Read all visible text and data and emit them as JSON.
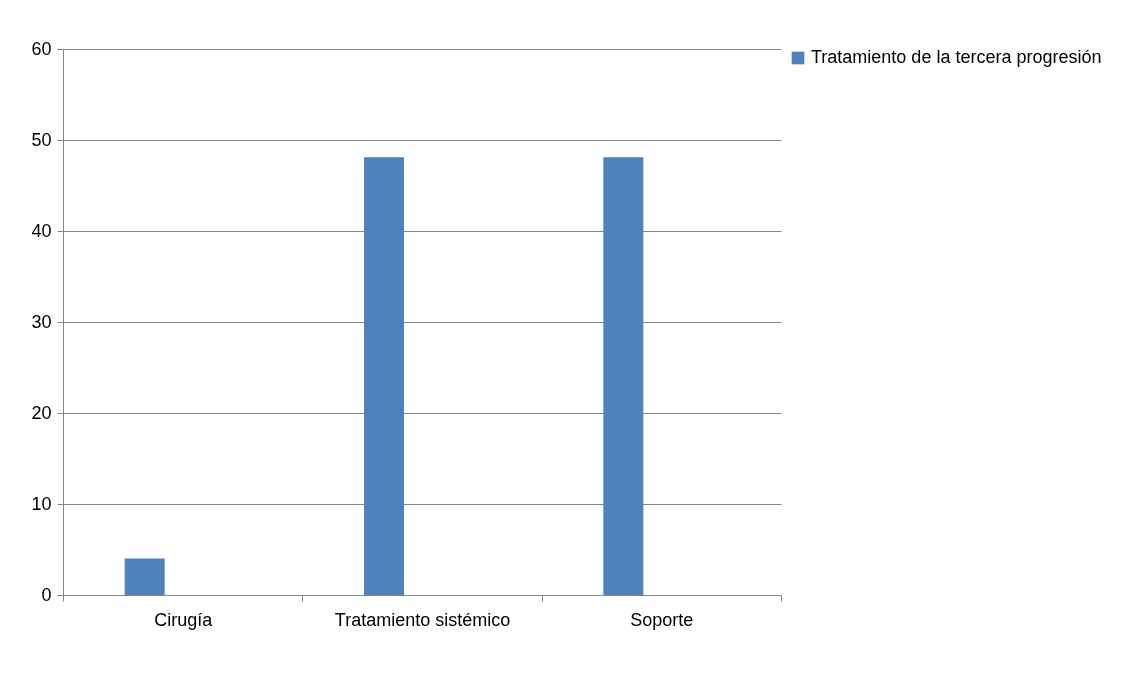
{
  "chart_data": {
    "type": "bar",
    "categories": [
      "Cirugía",
      "Tratamiento sistémico",
      "Soporte",
      null
    ],
    "series": [
      {
        "name": "Tratamiento de la tercera progresión",
        "color": "#4f81bd",
        "values": [
          4,
          48.1,
          48.1,
          null
        ]
      }
    ],
    "ylim": [
      0,
      60
    ],
    "yticks": [
      0,
      10,
      20,
      30,
      40,
      50,
      60
    ],
    "grid": "y",
    "legend": "right"
  }
}
